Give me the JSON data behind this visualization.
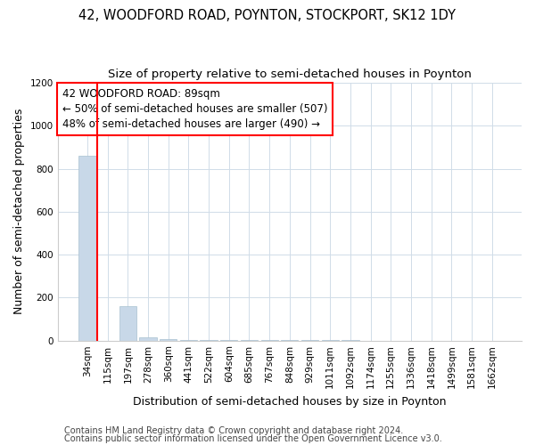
{
  "title": "42, WOODFORD ROAD, POYNTON, STOCKPORT, SK12 1DY",
  "subtitle": "Size of property relative to semi-detached houses in Poynton",
  "xlabel": "Distribution of semi-detached houses by size in Poynton",
  "ylabel": "Number of semi-detached properties",
  "footer_line1": "Contains HM Land Registry data © Crown copyright and database right 2024.",
  "footer_line2": "Contains public sector information licensed under the Open Government Licence v3.0.",
  "annotation_line1": "42 WOODFORD ROAD: 89sqm",
  "annotation_line2": "← 50% of semi-detached houses are smaller (507)",
  "annotation_line3": "48% of semi-detached houses are larger (490) →",
  "bar_labels": [
    "34sqm",
    "115sqm",
    "197sqm",
    "278sqm",
    "360sqm",
    "441sqm",
    "522sqm",
    "604sqm",
    "685sqm",
    "767sqm",
    "848sqm",
    "929sqm",
    "1011sqm",
    "1092sqm",
    "1174sqm",
    "1255sqm",
    "1336sqm",
    "1418sqm",
    "1499sqm",
    "1581sqm",
    "1662sqm"
  ],
  "bar_values": [
    860,
    0,
    160,
    14,
    8,
    4,
    3,
    2,
    2,
    1,
    1,
    1,
    1,
    1,
    0,
    0,
    0,
    0,
    0,
    0,
    0
  ],
  "bar_color": "#c8d8e8",
  "bar_edge_color": "#a8c0d0",
  "grid_color": "#d0dce8",
  "ylim": [
    0,
    1200
  ],
  "yticks": [
    0,
    200,
    400,
    600,
    800,
    1000,
    1200
  ],
  "red_line_index": 1,
  "title_fontsize": 10.5,
  "subtitle_fontsize": 9.5,
  "axis_label_fontsize": 9,
  "tick_fontsize": 7.5,
  "footer_fontsize": 7,
  "annotation_fontsize": 8.5
}
